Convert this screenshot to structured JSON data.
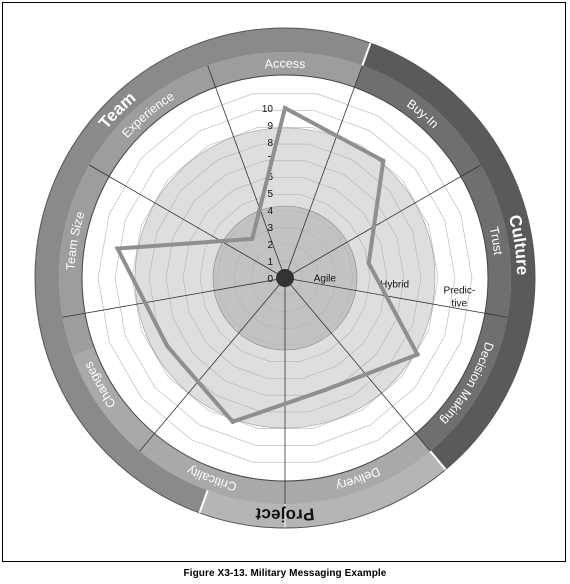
{
  "chart_data": {
    "type": "radar",
    "title": "",
    "scale": {
      "min": 0,
      "max": 10,
      "ticks": [
        "0",
        "1",
        "2",
        "3",
        "4",
        "5",
        "6",
        "7",
        "8",
        "9",
        "10"
      ]
    },
    "axes": [
      "Access",
      "Buy-In",
      "Trust",
      "Decision Making",
      "Delivery",
      "Criticality",
      "Changes",
      "Team Size",
      "Experience"
    ],
    "groups": [
      {
        "name": "Team",
        "axes": [
          "Team Size",
          "Experience",
          "Access"
        ]
      },
      {
        "name": "Culture",
        "axes": [
          "Buy-In",
          "Trust",
          "Decision Making"
        ]
      },
      {
        "name": "Project",
        "axes": [
          "Delivery",
          "Criticality",
          "Changes"
        ]
      }
    ],
    "zones": [
      "Agile",
      "Hybrid",
      "Predic-",
      "tive"
    ],
    "series": [
      {
        "values": [
          10,
          9,
          5,
          9,
          7,
          9,
          8,
          10,
          3
        ]
      }
    ]
  },
  "caption": "Figure X3-13. Military Messaging Example",
  "colors": {
    "team_band": "#8a8a8a",
    "culture_band": "#5a5a5a",
    "project_band": "#b5b5b5",
    "axis_band": "#9d9d9d",
    "plot_line": "#8f8f8f",
    "inner_disc": "#c2c2c2",
    "middle_disc": "#dedede"
  },
  "icons": {
    "team": "people-icon",
    "culture": "head-icon",
    "project": "flask-icon"
  }
}
